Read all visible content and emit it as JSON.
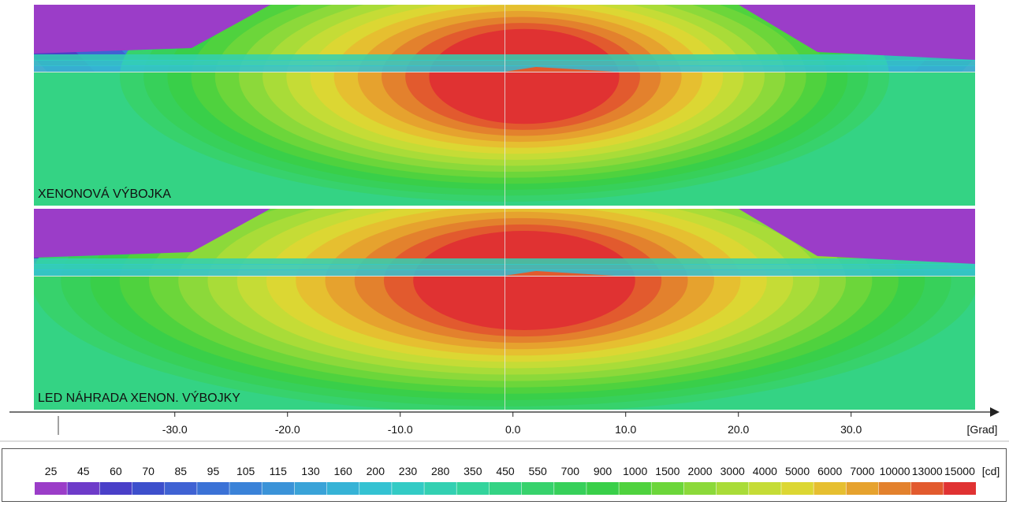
{
  "chart_data": [
    {
      "type": "heatmap",
      "title": "XENONOVÁ VÝBOJKA",
      "x_unit": "[Grad]",
      "xlim": [
        -42.5,
        41
      ],
      "x_ticks": [
        -30.0,
        -20.0,
        -10.0,
        0.0,
        10.0,
        20.0,
        30.0
      ],
      "cutoff_line": true,
      "hotspot": {
        "x_center": 0,
        "peak_cd": 15000
      }
    },
    {
      "type": "heatmap",
      "title": "LED NÁHRADA XENON. VÝBOJKY",
      "x_unit": "[Grad]",
      "xlim": [
        -42.5,
        41
      ],
      "x_ticks": [
        -30.0,
        -20.0,
        -10.0,
        0.0,
        10.0,
        20.0,
        30.0
      ],
      "cutoff_line": true,
      "hotspot": {
        "x_center": 0,
        "peak_cd": 15000
      }
    }
  ],
  "axis": {
    "tick_labels": [
      "-30.0",
      "-20.0",
      "-10.0",
      "0.0",
      "10.0",
      "20.0",
      "30.0"
    ],
    "tick_values": [
      -30,
      -20,
      -10,
      0,
      10,
      20,
      30
    ],
    "unit": "[Grad]"
  },
  "legend": {
    "unit": "[cd]",
    "levels": [
      "25",
      "45",
      "60",
      "70",
      "85",
      "95",
      "105",
      "115",
      "130",
      "160",
      "200",
      "230",
      "280",
      "350",
      "450",
      "550",
      "700",
      "900",
      "1000",
      "1500",
      "2000",
      "3000",
      "4000",
      "5000",
      "6000",
      "7000",
      "10000",
      "13000",
      "15000"
    ],
    "colors": [
      "#9b3dc8",
      "#6e3bc9",
      "#4a3fc8",
      "#3d4fcc",
      "#3f62d3",
      "#3b72d6",
      "#3a82d8",
      "#3b93d8",
      "#3aa3d8",
      "#36b3d6",
      "#34c2d2",
      "#33cbc5",
      "#33d0b2",
      "#33d49c",
      "#34d384",
      "#37d26c",
      "#37d05a",
      "#39cf49",
      "#4fd23e",
      "#6cd63a",
      "#8cd93a",
      "#a9dc38",
      "#c5dc36",
      "#dcd733",
      "#e6bf30",
      "#e6a22e",
      "#e3812d",
      "#e25a2e",
      "#e03232"
    ]
  }
}
